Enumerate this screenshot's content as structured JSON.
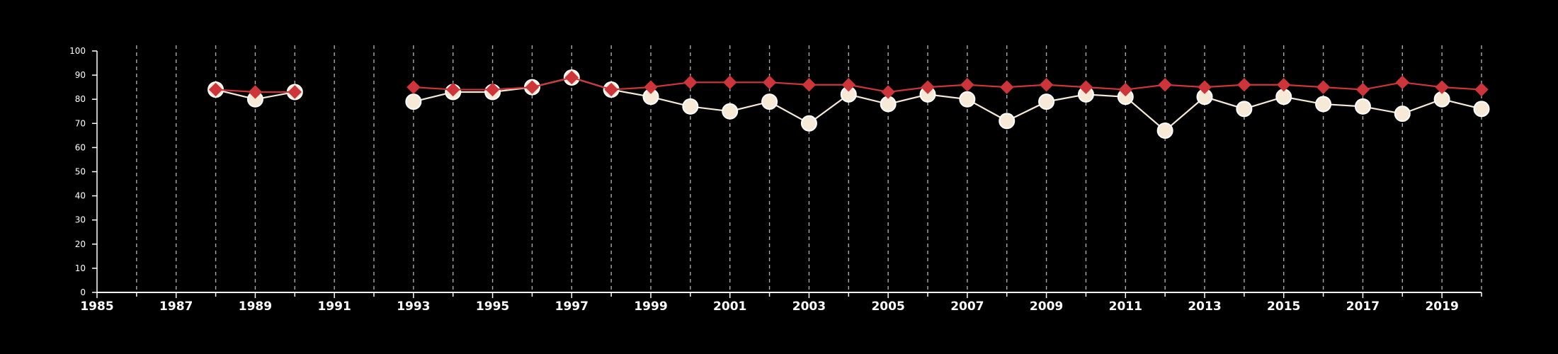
{
  "chart_data": {
    "type": "line",
    "title": "",
    "xlabel": "",
    "ylabel": "",
    "xlim": [
      1985,
      2020
    ],
    "ylim": [
      0,
      100
    ],
    "y_ticks": [
      0,
      10,
      20,
      30,
      40,
      50,
      60,
      70,
      80,
      90,
      100
    ],
    "x_ticks": [
      1985,
      1987,
      1989,
      1991,
      1993,
      1995,
      1997,
      1999,
      2001,
      2003,
      2005,
      2007,
      2009,
      2011,
      2013,
      2015,
      2017,
      2019
    ],
    "vertical_grid": "dashed, every year",
    "series": [
      {
        "color": "#ce353a",
        "marker": "diamond",
        "points": [
          [
            1988,
            84
          ],
          [
            1989,
            83
          ],
          [
            1990,
            83
          ],
          [
            1993,
            85
          ],
          [
            1994,
            84
          ],
          [
            1995,
            84
          ],
          [
            1996,
            85
          ],
          [
            1997,
            89
          ],
          [
            1998,
            84
          ],
          [
            1999,
            85
          ],
          [
            2000,
            87
          ],
          [
            2001,
            87
          ],
          [
            2002,
            87
          ],
          [
            2003,
            86
          ],
          [
            2004,
            86
          ],
          [
            2005,
            83
          ],
          [
            2006,
            85
          ],
          [
            2007,
            86
          ],
          [
            2008,
            85
          ],
          [
            2009,
            86
          ],
          [
            2010,
            85
          ],
          [
            2011,
            84
          ],
          [
            2012,
            86
          ],
          [
            2013,
            85
          ],
          [
            2014,
            86
          ],
          [
            2015,
            86
          ],
          [
            2016,
            85
          ],
          [
            2017,
            84
          ],
          [
            2018,
            87
          ],
          [
            2019,
            85
          ],
          [
            2020,
            84
          ]
        ]
      },
      {
        "color": "#f6e9d6",
        "marker": "circle",
        "points": [
          [
            1988,
            84
          ],
          [
            1989,
            80
          ],
          [
            1990,
            83
          ],
          [
            1993,
            79
          ],
          [
            1994,
            83
          ],
          [
            1995,
            83
          ],
          [
            1996,
            85
          ],
          [
            1997,
            89
          ],
          [
            1998,
            84
          ],
          [
            1999,
            81
          ],
          [
            2000,
            77
          ],
          [
            2001,
            75
          ],
          [
            2002,
            79
          ],
          [
            2003,
            70
          ],
          [
            2004,
            82
          ],
          [
            2005,
            78
          ],
          [
            2006,
            82
          ],
          [
            2007,
            80
          ],
          [
            2008,
            71
          ],
          [
            2009,
            79
          ],
          [
            2010,
            82
          ],
          [
            2011,
            81
          ],
          [
            2012,
            67
          ],
          [
            2013,
            81
          ],
          [
            2014,
            76
          ],
          [
            2015,
            81
          ],
          [
            2016,
            78
          ],
          [
            2017,
            77
          ],
          [
            2018,
            74
          ],
          [
            2019,
            80
          ],
          [
            2020,
            76
          ]
        ]
      }
    ]
  }
}
